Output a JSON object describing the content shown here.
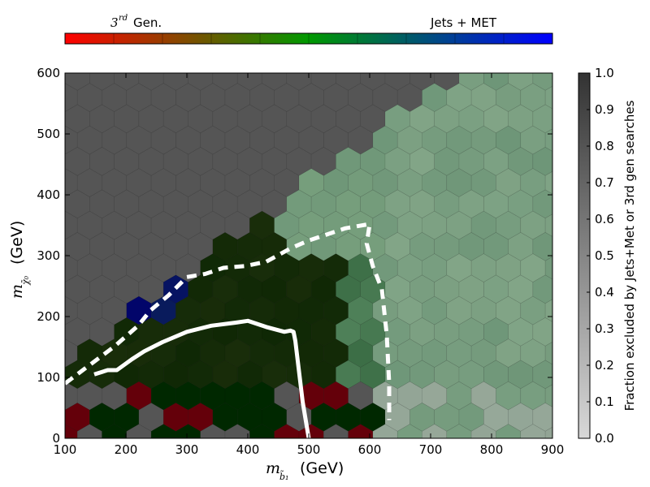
{
  "chart_data": {
    "type": "heatmap",
    "subtype": "hexbin",
    "xlabel_main": "m",
    "xlabel_sub": "b̃₁",
    "xlabel_unit": "(GeV)",
    "ylabel_main": "m",
    "ylabel_sub": "χ̃₀",
    "ylabel_unit": "(GeV)",
    "xlim": [
      100,
      900
    ],
    "ylim": [
      0,
      600
    ],
    "x_ticks": [
      "100",
      "200",
      "300",
      "400",
      "500",
      "600",
      "700",
      "800",
      "900"
    ],
    "y_ticks": [
      "0",
      "100",
      "200",
      "300",
      "400",
      "500",
      "600"
    ],
    "colorbar": {
      "label": "Fraction excluded by Jets+Met or 3rd gen searches",
      "range": [
        0.0,
        1.0
      ],
      "ticks": [
        "0.0",
        "0.1",
        "0.2",
        "0.3",
        "0.4",
        "0.5",
        "0.6",
        "0.7",
        "0.8",
        "0.9",
        "1.0"
      ]
    },
    "hue_scale": {
      "left_label_base": "3",
      "left_label_sup": "rd",
      "left_label_rest": "Gen.",
      "right_label": "Jets + MET",
      "colors": [
        "#ff0000",
        "#008800",
        "#0000ff"
      ]
    },
    "background_color": "#555555",
    "exclusion_lines": [
      {
        "style": "solid",
        "color": "#ffffff",
        "points": [
          [
            148,
            105
          ],
          [
            170,
            112
          ],
          [
            185,
            112
          ],
          [
            210,
            130
          ],
          [
            230,
            143
          ],
          [
            260,
            158
          ],
          [
            300,
            175
          ],
          [
            340,
            185
          ],
          [
            380,
            190
          ],
          [
            400,
            193
          ],
          [
            430,
            183
          ],
          [
            460,
            175
          ],
          [
            470,
            177
          ],
          [
            475,
            175
          ],
          [
            478,
            160
          ],
          [
            484,
            110
          ],
          [
            490,
            60
          ],
          [
            500,
            0
          ]
        ]
      },
      {
        "style": "dashed",
        "color": "#ffffff",
        "points": [
          [
            100,
            90
          ],
          [
            140,
            120
          ],
          [
            180,
            150
          ],
          [
            220,
            185
          ],
          [
            240,
            210
          ],
          [
            270,
            235
          ],
          [
            300,
            265
          ],
          [
            330,
            270
          ],
          [
            360,
            280
          ],
          [
            395,
            283
          ],
          [
            430,
            290
          ],
          [
            470,
            312
          ],
          [
            500,
            325
          ],
          [
            560,
            345
          ],
          [
            600,
            352
          ],
          [
            595,
            320
          ],
          [
            605,
            283
          ],
          [
            620,
            245
          ],
          [
            628,
            170
          ],
          [
            632,
            90
          ],
          [
            632,
            30
          ]
        ]
      }
    ]
  }
}
